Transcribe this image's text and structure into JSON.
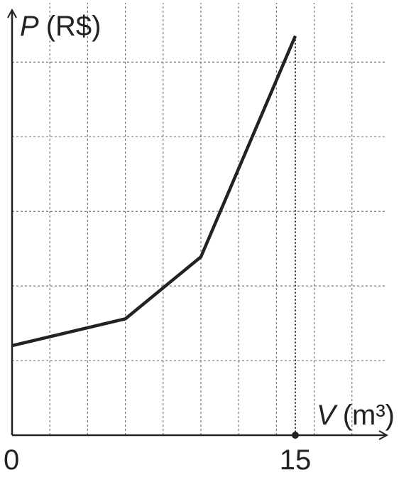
{
  "chart_data": {
    "type": "line",
    "x_label": {
      "var": "V",
      "unit": "(m³)"
    },
    "y_label": {
      "var": "P",
      "unit": "(R$)"
    },
    "x": [
      0,
      6,
      10,
      15
    ],
    "series": [
      {
        "color": "#222222",
        "values": [
          1.2,
          1.56,
          2.39,
          5.35
        ]
      }
    ],
    "xlim": [
      0,
      19.85
    ],
    "ylim": [
      0,
      5.69
    ],
    "xticks": [
      0,
      15
    ],
    "xgrid": [
      2,
      4,
      6,
      8,
      10,
      12,
      14,
      16,
      18
    ],
    "ygrid": [
      1,
      2,
      3,
      4,
      5
    ],
    "grid": true
  }
}
